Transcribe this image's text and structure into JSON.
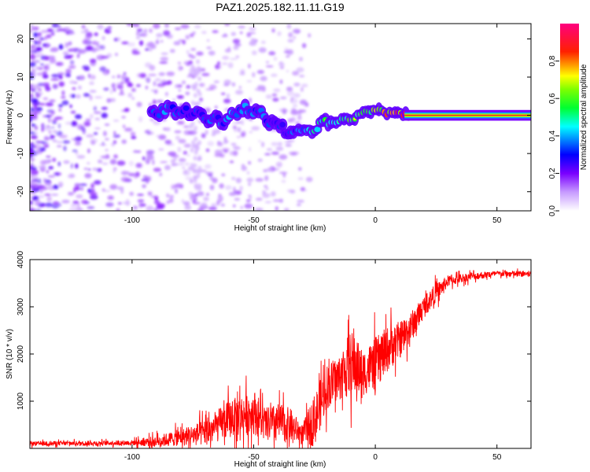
{
  "title": "PAZ1.2025.182.11.11.G19",
  "chart_data": [
    {
      "type": "heatmap",
      "title": "PAZ1.2025.182.11.11.G19",
      "xlabel": "Height of straight line (km)",
      "ylabel": "Frequency (Hz)",
      "xlim": [
        -142,
        64
      ],
      "ylim": [
        -25,
        24
      ],
      "xticks": [
        "-100",
        "-50",
        "0",
        "50"
      ],
      "yticks": [
        "-20",
        "-10",
        "0",
        "10",
        "20"
      ],
      "colorbar": {
        "label": "Normalized spectral amplitude",
        "range": [
          0,
          1
        ],
        "ticks": [
          "0.0",
          "0.2",
          "0.4",
          "0.6",
          "0.8"
        ],
        "colormap": [
          "#ffffff",
          "#8b00ff",
          "#0000ff",
          "#00ffff",
          "#00ff00",
          "#ffff00",
          "#ff0000",
          "#ff007f"
        ]
      },
      "ridge": {
        "x": [
          -92,
          -85,
          -78,
          -70,
          -62,
          -55,
          -48,
          -42,
          -36,
          -30,
          -25,
          -20,
          -15,
          -10,
          -5,
          0,
          5,
          10,
          15,
          30,
          45,
          64
        ],
        "freq": [
          0.5,
          1.5,
          1.0,
          -0.5,
          -1.5,
          2.0,
          1.0,
          -2.5,
          -4.0,
          -3.0,
          -3.5,
          -2.0,
          -1.5,
          -1.0,
          0.5,
          1.5,
          0.5,
          0.2,
          0.1,
          0.0,
          0.0,
          0.0
        ],
        "amplitude": [
          0.3,
          0.35,
          0.3,
          0.3,
          0.35,
          0.4,
          0.35,
          0.3,
          0.3,
          0.35,
          0.45,
          0.5,
          0.5,
          0.55,
          0.6,
          0.65,
          0.7,
          0.8,
          0.85,
          0.9,
          0.9,
          0.9
        ]
      }
    },
    {
      "type": "line",
      "xlabel": "Height of straight line (km)",
      "ylabel": "SNR (10 * v/v)",
      "xlim": [
        -142,
        64
      ],
      "ylim": [
        0,
        4000
      ],
      "xticks": [
        "-100",
        "-50",
        "0",
        "50"
      ],
      "yticks": [
        "1000",
        "2000",
        "3000",
        "4000"
      ],
      "color": "#ff0000",
      "envelope": {
        "x": [
          -142,
          -120,
          -100,
          -90,
          -80,
          -70,
          -60,
          -50,
          -45,
          -40,
          -35,
          -30,
          -25,
          -20,
          -15,
          -10,
          -5,
          0,
          5,
          10,
          15,
          20,
          25,
          30,
          40,
          50,
          64
        ],
        "mean": [
          100,
          110,
          120,
          150,
          230,
          330,
          620,
          780,
          500,
          550,
          500,
          300,
          600,
          1300,
          1500,
          1800,
          1600,
          1800,
          2100,
          2300,
          2600,
          3000,
          3300,
          3550,
          3650,
          3700,
          3700
        ],
        "spread": [
          60,
          60,
          70,
          150,
          220,
          350,
          500,
          600,
          450,
          500,
          450,
          250,
          700,
          600,
          600,
          900,
          600,
          700,
          600,
          500,
          400,
          300,
          250,
          150,
          100,
          80,
          80
        ]
      }
    }
  ]
}
